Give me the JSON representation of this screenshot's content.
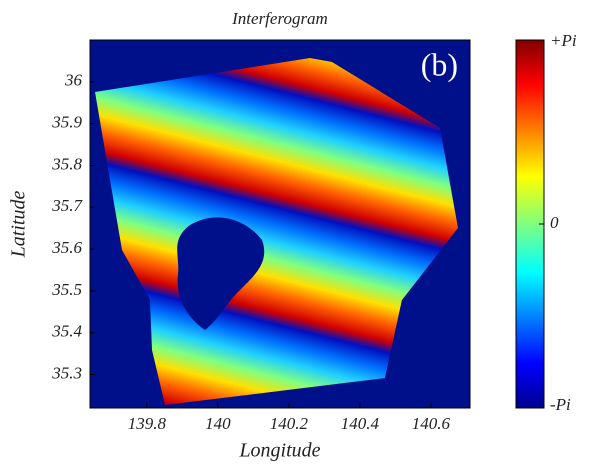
{
  "chart_data": {
    "type": "image",
    "title": "Interferogram",
    "annotation": "(b)",
    "x_label": "Longitude",
    "y_label": "Latitude",
    "xlim": [
      139.64,
      140.71
    ],
    "ylim": [
      35.22,
      36.1
    ],
    "xticks": [
      139.8,
      140,
      140.2,
      140.4,
      140.6
    ],
    "yticks": [
      35.3,
      35.4,
      35.5,
      35.6,
      35.7,
      35.8,
      35.9,
      36
    ],
    "colorbar": {
      "lim": [
        -3.14159,
        3.14159
      ],
      "ticks": [
        {
          "value": 3.14159,
          "label": "+Pi"
        },
        0,
        {
          "value": -3.14159,
          "label": "-Pi"
        }
      ]
    }
  }
}
